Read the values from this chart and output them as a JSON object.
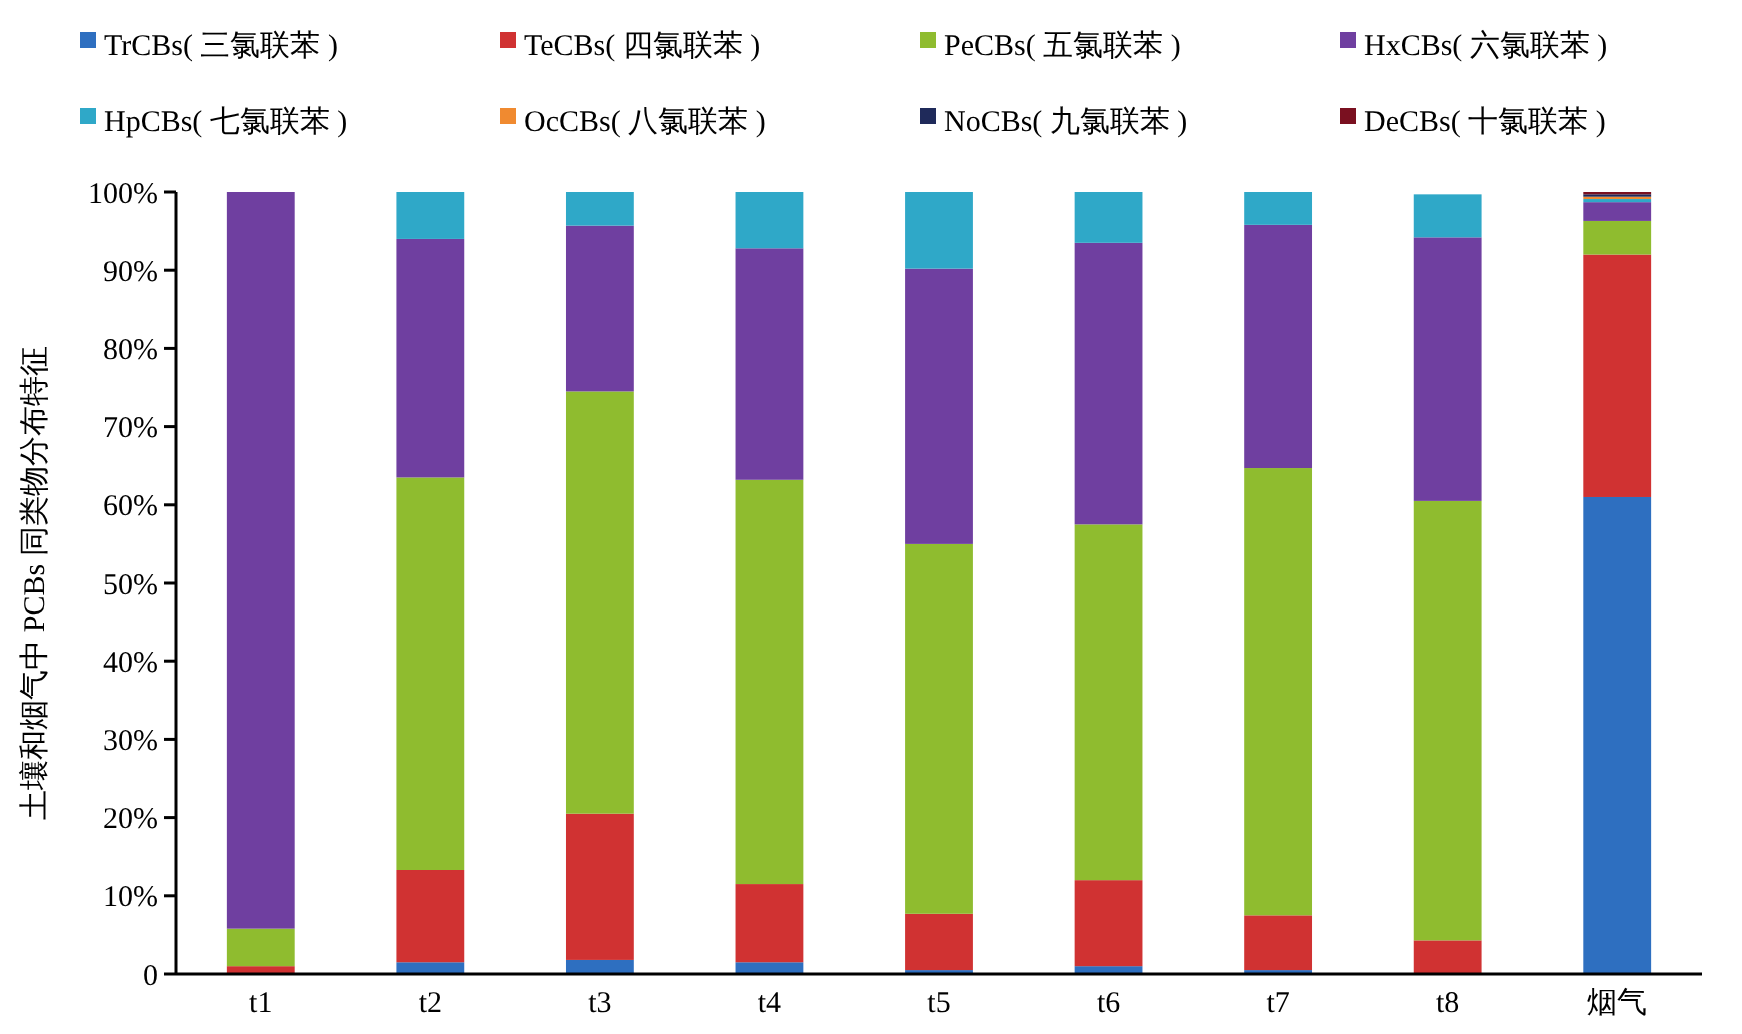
{
  "chart_data": {
    "type": "bar",
    "stacked": true,
    "ylabel": "土壤和烟气中 PCBs 同类物分布特征",
    "categories": [
      "t1",
      "t2",
      "t3",
      "t4",
      "t5",
      "t6",
      "t7",
      "t8",
      "烟气"
    ],
    "series": [
      {
        "name": "TrCBs( 三氯联苯 )",
        "color": "#2e6fc0",
        "values": [
          0,
          1.5,
          1.8,
          1.5,
          0.5,
          1,
          0.5,
          null,
          61
        ]
      },
      {
        "name": "TeCBs( 四氯联苯 )",
        "color": "#d03232",
        "values": [
          1,
          11.8,
          18.7,
          10,
          7.2,
          11,
          7,
          4.3,
          31
        ]
      },
      {
        "name": "PeCBs( 五氯联苯 )",
        "color": "#8fbc2f",
        "values": [
          4.8,
          50.2,
          54,
          51.7,
          47.3,
          45.5,
          57.2,
          56.2,
          4.3
        ]
      },
      {
        "name": "HxCBs( 六氯联苯 )",
        "color": "#6f3fa0",
        "values": [
          94.2,
          30.5,
          21.2,
          29.6,
          35.2,
          36,
          31.1,
          33.7,
          2.4
        ]
      },
      {
        "name": "HpCBs( 七氯联苯 )",
        "color": "#2fa8c8",
        "values": [
          0,
          6,
          4.3,
          7.2,
          9.8,
          6.5,
          4.2,
          5.5,
          0.4
        ]
      },
      {
        "name": "OcCBs( 八氯联苯 )",
        "color": "#f08a30",
        "values": [
          0,
          0,
          0,
          0,
          0,
          0,
          0,
          0,
          0.3
        ]
      },
      {
        "name": "NoCBs( 九氯联苯 )",
        "color": "#1f2a5a",
        "values": [
          0,
          0,
          0,
          0,
          0,
          0,
          0,
          0,
          0.3
        ]
      },
      {
        "name": "DeCBs( 十氯联苯 )",
        "color": "#7a1020",
        "values": [
          0,
          0,
          0,
          0,
          0,
          0,
          0,
          0,
          0.3
        ]
      }
    ],
    "ylim": [
      0,
      100
    ],
    "yticks": [
      {
        "value": 0,
        "label": "0"
      },
      {
        "value": 10,
        "label": "10%"
      },
      {
        "value": 20,
        "label": "20%"
      },
      {
        "value": 30,
        "label": "30%"
      },
      {
        "value": 40,
        "label": "40%"
      },
      {
        "value": 50,
        "label": "50%"
      },
      {
        "value": 60,
        "label": "60%"
      },
      {
        "value": 70,
        "label": "70%"
      },
      {
        "value": 80,
        "label": "80%"
      },
      {
        "value": 90,
        "label": "90%"
      },
      {
        "value": 100,
        "label": "100%"
      }
    ],
    "legend": "top",
    "grid": false
  }
}
